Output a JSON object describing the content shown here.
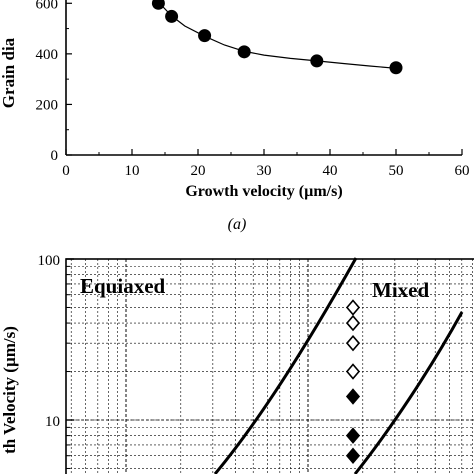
{
  "chart_data": [
    {
      "type": "scatter",
      "panel_label": "(a)",
      "xlabel": "Growth velocity (µm/s)",
      "ylabel": "Grain dia",
      "xlim": [
        0,
        60
      ],
      "ylim": [
        0,
        700
      ],
      "x_ticks": [
        0,
        10,
        20,
        30,
        40,
        50,
        60
      ],
      "y_ticks": [
        0,
        200,
        400,
        600
      ],
      "grid": false,
      "series": [
        {
          "x": [
            14,
            16,
            21,
            27,
            38,
            50
          ],
          "y": [
            600,
            548,
            472,
            408,
            372,
            345
          ]
        }
      ],
      "fit_curve": {
        "x": [
          11,
          12,
          14,
          16,
          18,
          21,
          24,
          27,
          30,
          34,
          38,
          42,
          46,
          50
        ],
        "y": [
          700,
          665,
          605,
          550,
          510,
          470,
          435,
          410,
          395,
          382,
          372,
          362,
          352,
          343
        ]
      }
    },
    {
      "type": "scatter",
      "ylabel": "th Velocity (µm/s)",
      "yscale": "log",
      "ylim": [
        4,
        100
      ],
      "y_ticks": [
        10,
        100
      ],
      "grid": true,
      "region_labels": [
        "Equiaxed",
        "Mixed"
      ],
      "series": [
        {
          "marker": "open-diamond",
          "values": [
            50,
            40,
            30,
            20
          ]
        },
        {
          "marker": "filled-diamond",
          "values": [
            14,
            8,
            6
          ]
        }
      ]
    }
  ]
}
